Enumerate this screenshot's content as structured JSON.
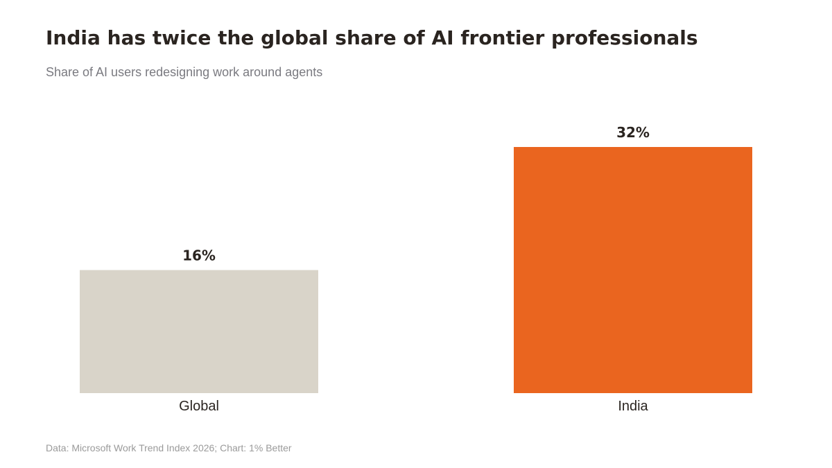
{
  "title": "India has twice the global share of AI frontier professionals",
  "subtitle": "Share of AI users redesigning work around agents",
  "source": "Data: Microsoft Work Trend Index 2026; Chart: 1% Better",
  "colors": {
    "global": "#d9d4c9",
    "india": "#ea651f",
    "text": "#2a2420"
  },
  "chart_data": {
    "type": "bar",
    "categories": [
      "Global",
      "India"
    ],
    "values": [
      16,
      32
    ],
    "value_labels": [
      "16%",
      "32%"
    ],
    "title": "India has twice the global share of AI frontier professionals",
    "subtitle": "Share of AI users redesigning work around agents",
    "xlabel": "",
    "ylabel": "",
    "ylim": [
      0,
      32
    ],
    "grid": false,
    "legend": "none"
  }
}
